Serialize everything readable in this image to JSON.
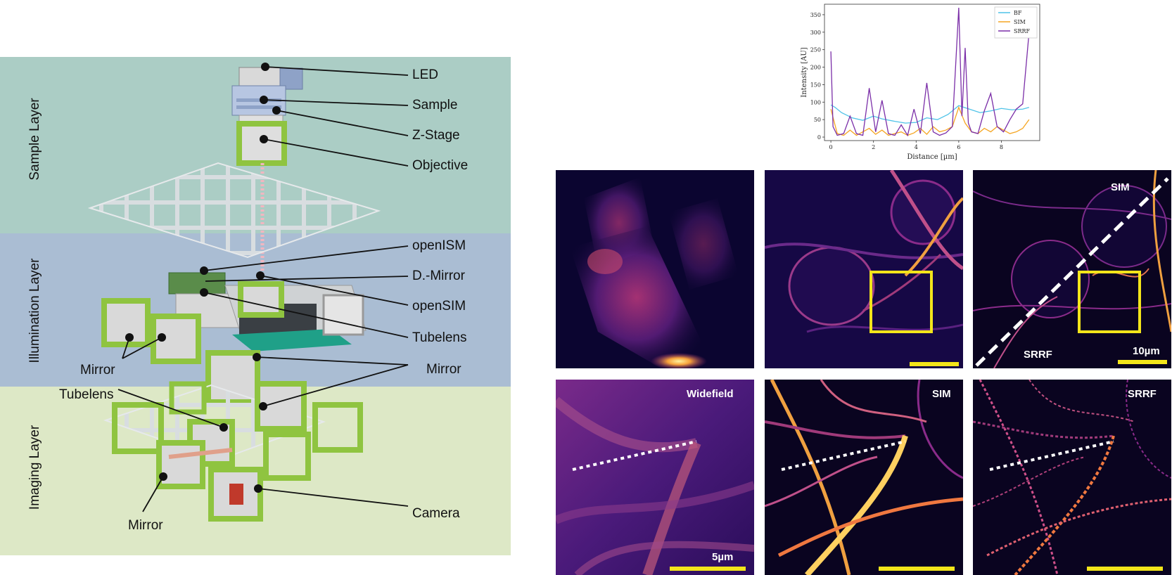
{
  "layers": [
    {
      "id": "sample",
      "label": "Sample Layer"
    },
    {
      "id": "illumination",
      "label": "Illumination Layer"
    },
    {
      "id": "imaging",
      "label": "Imaging Layer"
    }
  ],
  "callouts": {
    "led": "LED",
    "sample": "Sample",
    "zstage": "Z-Stage",
    "objective": "Objective",
    "openism": "openISM",
    "dmirror": "D.-Mirror",
    "opensim": "openSIM",
    "tubelens_right": "Tubelens",
    "mirror_left": "Mirror",
    "mirror_right": "Mirror",
    "tubelens_left": "Tubelens",
    "mirror_bottom": "Mirror",
    "camera": "Camera"
  },
  "panels": {
    "top_middle_scale": "",
    "top_right_sim": "SIM",
    "top_right_srrf": "SRRF",
    "top_right_scale": "10µm",
    "bottom_left": "Widefield",
    "bottom_left_scale": "5µm",
    "bottom_middle": "SIM",
    "bottom_right": "SRRF"
  },
  "colors": {
    "bf": "#4fc3e8",
    "sim": "#f5a623",
    "srrf": "#7b2fa8",
    "frame_green": "#8fc440",
    "highlight_yellow": "#f3e51a"
  },
  "chart_data": {
    "type": "line",
    "xlabel": "Distance [µm]",
    "ylabel": "Intensity [AU]",
    "xlim": [
      -0.3,
      9.8
    ],
    "ylim": [
      -10,
      380
    ],
    "xticks": [
      0,
      2,
      4,
      6,
      8
    ],
    "yticks": [
      0,
      50,
      100,
      150,
      200,
      250,
      300,
      350
    ],
    "legend": "top-right",
    "series": [
      {
        "name": "BF",
        "color": "#4fc3e8",
        "x": [
          0,
          0.2,
          0.5,
          1.0,
          1.5,
          2.0,
          2.4,
          3.0,
          3.5,
          4.0,
          4.5,
          5.0,
          5.5,
          6.0,
          6.5,
          7.0,
          7.5,
          8.0,
          8.5,
          9.0,
          9.3
        ],
        "values": [
          92,
          85,
          70,
          55,
          48,
          60,
          52,
          45,
          40,
          42,
          55,
          50,
          65,
          90,
          80,
          70,
          75,
          82,
          78,
          80,
          85
        ]
      },
      {
        "name": "SIM",
        "color": "#f5a623",
        "x": [
          0,
          0.3,
          0.6,
          0.9,
          1.2,
          1.5,
          1.8,
          2.1,
          2.4,
          2.7,
          3.0,
          3.3,
          3.6,
          3.9,
          4.2,
          4.5,
          4.8,
          5.1,
          5.4,
          5.7,
          6.0,
          6.3,
          6.6,
          6.9,
          7.2,
          7.5,
          7.8,
          8.1,
          8.4,
          8.7,
          9.0,
          9.3
        ],
        "values": [
          80,
          10,
          5,
          20,
          5,
          15,
          25,
          8,
          20,
          5,
          10,
          15,
          5,
          12,
          25,
          8,
          30,
          15,
          20,
          30,
          85,
          40,
          15,
          10,
          25,
          15,
          30,
          20,
          10,
          15,
          25,
          50
        ]
      },
      {
        "name": "SRRF",
        "color": "#7b2fa8",
        "x": [
          0,
          0.1,
          0.3,
          0.6,
          0.9,
          1.2,
          1.5,
          1.8,
          2.1,
          2.4,
          2.7,
          3.0,
          3.3,
          3.6,
          3.9,
          4.2,
          4.5,
          4.8,
          5.1,
          5.4,
          5.7,
          6.0,
          6.15,
          6.3,
          6.45,
          6.6,
          6.9,
          7.2,
          7.5,
          7.8,
          8.1,
          8.4,
          8.7,
          9.0,
          9.3
        ],
        "values": [
          245,
          30,
          5,
          10,
          60,
          10,
          5,
          140,
          15,
          105,
          10,
          5,
          35,
          5,
          80,
          10,
          155,
          15,
          5,
          12,
          30,
          370,
          60,
          255,
          40,
          15,
          10,
          75,
          125,
          30,
          15,
          50,
          80,
          95,
          300
        ]
      }
    ]
  }
}
